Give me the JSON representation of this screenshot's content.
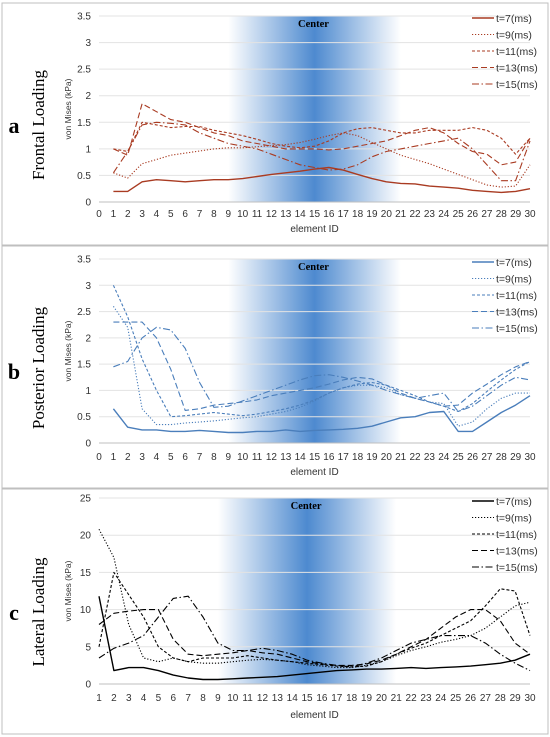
{
  "chart_data": [
    {
      "type": "line",
      "panel_letter": "a",
      "side_label": "Frontal Loading",
      "center_label": "Center",
      "xlabel": "element ID",
      "ylabel": "von Mises (kPa)",
      "x_ticks": [
        0,
        1,
        2,
        3,
        4,
        5,
        6,
        7,
        8,
        9,
        10,
        11,
        12,
        13,
        14,
        15,
        16,
        17,
        18,
        19,
        20,
        21,
        22,
        23,
        24,
        25,
        26,
        27,
        28,
        29,
        30
      ],
      "y_ticks": [
        0,
        0.5,
        1,
        1.5,
        2,
        2.5,
        3,
        3.5
      ],
      "ylim": [
        0,
        3.5
      ],
      "xlim": [
        0,
        30
      ],
      "highlight_range": [
        9,
        21
      ],
      "legend_position": "top-right",
      "color": "#a93b22",
      "series": [
        {
          "name": "t=7(ms)",
          "style": "solid",
          "x": [
            1,
            2,
            3,
            4,
            5,
            6,
            7,
            8,
            9,
            10,
            11,
            12,
            13,
            14,
            15,
            16,
            17,
            18,
            19,
            20,
            21,
            22,
            23,
            24,
            25,
            26,
            27,
            28,
            29,
            30
          ],
          "values": [
            0.2,
            0.2,
            0.38,
            0.42,
            0.4,
            0.38,
            0.4,
            0.42,
            0.42,
            0.44,
            0.48,
            0.52,
            0.55,
            0.58,
            0.62,
            0.65,
            0.6,
            0.52,
            0.44,
            0.38,
            0.35,
            0.34,
            0.3,
            0.28,
            0.26,
            0.22,
            0.2,
            0.18,
            0.2,
            0.25
          ]
        },
        {
          "name": "t=9(ms)",
          "style": "dotted",
          "x": [
            1,
            2,
            3,
            4,
            5,
            6,
            7,
            8,
            9,
            10,
            11,
            12,
            13,
            14,
            15,
            16,
            17,
            18,
            19,
            20,
            21,
            22,
            23,
            24,
            25,
            26,
            27,
            28,
            29,
            30
          ],
          "values": [
            0.55,
            0.45,
            0.72,
            0.8,
            0.88,
            0.92,
            0.96,
            1.0,
            1.02,
            1.02,
            1.04,
            1.06,
            1.08,
            1.12,
            1.18,
            1.25,
            1.3,
            1.25,
            1.12,
            1.0,
            0.88,
            0.8,
            0.72,
            0.62,
            0.52,
            0.42,
            0.32,
            0.28,
            0.3,
            0.7
          ]
        },
        {
          "name": "t=11(ms)",
          "style": "small-dash",
          "x": [
            1,
            2,
            3,
            4,
            5,
            6,
            7,
            8,
            9,
            10,
            11,
            12,
            13,
            14,
            15,
            16,
            17,
            18,
            19,
            20,
            21,
            22,
            23,
            24,
            25,
            26,
            27,
            28,
            29,
            30
          ],
          "values": [
            1.0,
            0.95,
            1.5,
            1.45,
            1.4,
            1.42,
            1.42,
            1.35,
            1.3,
            1.25,
            1.18,
            1.1,
            1.05,
            1.02,
            1.05,
            1.15,
            1.3,
            1.38,
            1.4,
            1.35,
            1.3,
            1.3,
            1.35,
            1.35,
            1.35,
            1.4,
            1.35,
            1.2,
            0.9,
            1.2
          ]
        },
        {
          "name": "t=13(ms)",
          "style": "dash",
          "x": [
            1,
            2,
            3,
            4,
            5,
            6,
            7,
            8,
            9,
            10,
            11,
            12,
            13,
            14,
            15,
            16,
            17,
            18,
            19,
            20,
            21,
            22,
            23,
            24,
            25,
            26,
            27,
            28,
            29,
            30
          ],
          "values": [
            1.0,
            0.88,
            1.85,
            1.7,
            1.55,
            1.5,
            1.4,
            1.3,
            1.25,
            1.15,
            1.1,
            1.05,
            1.0,
            1.0,
            1.0,
            0.98,
            1.0,
            1.05,
            1.1,
            1.15,
            1.25,
            1.35,
            1.4,
            1.3,
            1.1,
            0.95,
            0.9,
            0.7,
            0.75,
            1.2
          ]
        },
        {
          "name": "t=15(ms)",
          "style": "dash-dot",
          "x": [
            1,
            2,
            3,
            4,
            5,
            6,
            7,
            8,
            9,
            10,
            11,
            12,
            13,
            14,
            15,
            16,
            17,
            18,
            19,
            20,
            21,
            22,
            23,
            24,
            25,
            26,
            27,
            28,
            29,
            30
          ],
          "values": [
            0.55,
            0.95,
            1.45,
            1.5,
            1.48,
            1.45,
            1.3,
            1.2,
            1.1,
            1.05,
            1.0,
            0.9,
            0.8,
            0.7,
            0.65,
            0.6,
            0.62,
            0.7,
            0.85,
            0.95,
            1.0,
            1.05,
            1.1,
            1.15,
            1.2,
            1.0,
            0.7,
            0.4,
            0.4,
            1.15
          ]
        }
      ]
    },
    {
      "type": "line",
      "panel_letter": "b",
      "side_label": "Posterior Loading",
      "center_label": "Center",
      "xlabel": "element ID",
      "ylabel": "von Mises (kPa)",
      "x_ticks": [
        0,
        1,
        2,
        3,
        4,
        5,
        6,
        7,
        8,
        9,
        10,
        11,
        12,
        13,
        14,
        15,
        16,
        17,
        18,
        19,
        20,
        21,
        22,
        23,
        24,
        25,
        26,
        27,
        28,
        29,
        30
      ],
      "y_ticks": [
        0,
        0.5,
        1,
        1.5,
        2,
        2.5,
        3,
        3.5
      ],
      "ylim": [
        0,
        3.5
      ],
      "xlim": [
        0,
        30
      ],
      "highlight_range": [
        9,
        21
      ],
      "legend_position": "top-right",
      "color": "#4a7ebb",
      "series": [
        {
          "name": "t=7(ms)",
          "style": "solid",
          "x": [
            1,
            2,
            3,
            4,
            5,
            6,
            7,
            8,
            9,
            10,
            11,
            12,
            13,
            14,
            15,
            16,
            17,
            18,
            19,
            20,
            21,
            22,
            23,
            24,
            25,
            26,
            27,
            28,
            29,
            30
          ],
          "values": [
            0.65,
            0.3,
            0.25,
            0.25,
            0.22,
            0.22,
            0.24,
            0.22,
            0.2,
            0.2,
            0.22,
            0.22,
            0.25,
            0.22,
            0.24,
            0.25,
            0.26,
            0.28,
            0.32,
            0.4,
            0.48,
            0.5,
            0.58,
            0.6,
            0.22,
            0.22,
            0.4,
            0.58,
            0.72,
            0.9
          ]
        },
        {
          "name": "t=9(ms)",
          "style": "dotted",
          "x": [
            1,
            2,
            3,
            4,
            5,
            6,
            7,
            8,
            9,
            10,
            11,
            12,
            13,
            14,
            15,
            16,
            17,
            18,
            19,
            20,
            21,
            22,
            23,
            24,
            25,
            26,
            27,
            28,
            29,
            30
          ],
          "values": [
            2.6,
            2.2,
            0.65,
            0.35,
            0.35,
            0.38,
            0.4,
            0.42,
            0.45,
            0.48,
            0.5,
            0.55,
            0.6,
            0.68,
            0.8,
            0.95,
            1.05,
            1.1,
            1.1,
            1.05,
            0.92,
            0.85,
            0.78,
            0.75,
            0.32,
            0.4,
            0.65,
            0.85,
            0.95,
            0.95
          ]
        },
        {
          "name": "t=11(ms)",
          "style": "small-dash",
          "x": [
            1,
            2,
            3,
            4,
            5,
            6,
            7,
            8,
            9,
            10,
            11,
            12,
            13,
            14,
            15,
            16,
            17,
            18,
            19,
            20,
            21,
            22,
            23,
            24,
            25,
            26,
            27,
            28,
            29,
            30
          ],
          "values": [
            3.0,
            2.4,
            1.6,
            1.0,
            0.5,
            0.52,
            0.55,
            0.58,
            0.55,
            0.52,
            0.55,
            0.6,
            0.65,
            0.72,
            0.82,
            0.95,
            1.05,
            1.12,
            1.15,
            1.1,
            1.0,
            0.9,
            0.78,
            0.7,
            0.6,
            0.75,
            0.98,
            1.2,
            1.4,
            1.55
          ]
        },
        {
          "name": "t=13(ms)",
          "style": "dash",
          "x": [
            1,
            2,
            3,
            4,
            5,
            6,
            7,
            8,
            9,
            10,
            11,
            12,
            13,
            14,
            15,
            16,
            17,
            18,
            19,
            20,
            21,
            22,
            23,
            24,
            25,
            26,
            27,
            28,
            29,
            30
          ],
          "values": [
            2.3,
            2.3,
            2.3,
            2.0,
            1.4,
            0.62,
            0.65,
            0.72,
            0.75,
            0.78,
            0.82,
            0.9,
            0.95,
            1.0,
            1.05,
            1.12,
            1.2,
            1.25,
            1.22,
            1.1,
            0.95,
            0.85,
            0.78,
            0.7,
            0.72,
            0.95,
            1.12,
            1.3,
            1.45,
            1.55
          ]
        },
        {
          "name": "t=15(ms)",
          "style": "dash-dot",
          "x": [
            1,
            2,
            3,
            4,
            5,
            6,
            7,
            8,
            9,
            10,
            11,
            12,
            13,
            14,
            15,
            16,
            17,
            18,
            19,
            20,
            21,
            22,
            23,
            24,
            25,
            26,
            27,
            28,
            29,
            30
          ],
          "values": [
            1.45,
            1.55,
            2.0,
            2.2,
            2.15,
            1.8,
            1.15,
            0.68,
            0.7,
            0.8,
            0.9,
            1.0,
            1.1,
            1.2,
            1.28,
            1.3,
            1.25,
            1.18,
            1.1,
            1.0,
            0.92,
            0.85,
            0.9,
            0.95,
            0.6,
            0.7,
            0.9,
            1.1,
            1.25,
            1.2
          ]
        }
      ]
    },
    {
      "type": "line",
      "panel_letter": "c",
      "side_label": "Lateral Loading",
      "center_label": "Center",
      "xlabel": "element ID",
      "ylabel": "von Mises (kPa)",
      "x_ticks": [
        1,
        2,
        3,
        4,
        5,
        6,
        7,
        8,
        9,
        10,
        11,
        12,
        13,
        14,
        15,
        16,
        17,
        18,
        19,
        20,
        21,
        22,
        23,
        24,
        25,
        26,
        27,
        28,
        29,
        30
      ],
      "y_ticks": [
        0,
        5,
        10,
        15,
        20,
        25
      ],
      "ylim": [
        0,
        25
      ],
      "xlim": [
        1,
        30
      ],
      "highlight_range": [
        9,
        21
      ],
      "legend_position": "top-right",
      "color": "#000000",
      "series": [
        {
          "name": "t=7(ms)",
          "style": "solid",
          "x": [
            1,
            2,
            3,
            4,
            5,
            6,
            7,
            8,
            9,
            10,
            11,
            12,
            13,
            14,
            15,
            16,
            17,
            18,
            19,
            20,
            21,
            22,
            23,
            24,
            25,
            26,
            27,
            28,
            29,
            30
          ],
          "values": [
            11.8,
            1.8,
            2.2,
            2.2,
            1.8,
            1.2,
            0.8,
            0.6,
            0.6,
            0.7,
            0.8,
            0.9,
            1.0,
            1.2,
            1.4,
            1.6,
            1.8,
            1.9,
            2.0,
            2.0,
            2.1,
            2.2,
            2.1,
            2.2,
            2.3,
            2.4,
            2.6,
            2.8,
            3.2,
            4.0
          ]
        },
        {
          "name": "t=9(ms)",
          "style": "dotted",
          "x": [
            1,
            2,
            3,
            4,
            5,
            6,
            7,
            8,
            9,
            10,
            11,
            12,
            13,
            14,
            15,
            16,
            17,
            18,
            19,
            20,
            21,
            22,
            23,
            24,
            25,
            26,
            27,
            28,
            29,
            30
          ],
          "values": [
            20.8,
            17.0,
            8.0,
            3.5,
            3.0,
            3.5,
            3.0,
            2.8,
            2.8,
            3.0,
            3.2,
            3.3,
            3.2,
            3.0,
            2.6,
            2.4,
            2.2,
            2.2,
            2.5,
            3.0,
            3.8,
            4.5,
            5.0,
            5.6,
            6.0,
            6.5,
            7.5,
            9.0,
            10.5,
            11.0
          ]
        },
        {
          "name": "t=11(ms)",
          "style": "small-dash",
          "x": [
            1,
            2,
            3,
            4,
            5,
            6,
            7,
            8,
            9,
            10,
            11,
            12,
            13,
            14,
            15,
            16,
            17,
            18,
            19,
            20,
            21,
            22,
            23,
            24,
            25,
            26,
            27,
            28,
            29,
            30
          ],
          "values": [
            5.0,
            15.0,
            12.0,
            9.0,
            5.0,
            3.5,
            3.0,
            3.5,
            3.5,
            3.5,
            3.8,
            3.5,
            3.2,
            3.0,
            2.8,
            2.6,
            2.4,
            2.3,
            2.4,
            3.0,
            4.0,
            4.8,
            5.5,
            6.5,
            7.5,
            8.5,
            10.5,
            12.8,
            12.5,
            6.5
          ]
        },
        {
          "name": "t=13(ms)",
          "style": "dash",
          "x": [
            1,
            2,
            3,
            4,
            5,
            6,
            7,
            8,
            9,
            10,
            11,
            12,
            13,
            14,
            15,
            16,
            17,
            18,
            19,
            20,
            21,
            22,
            23,
            24,
            25,
            26,
            27,
            28,
            29,
            30
          ],
          "values": [
            8.0,
            9.5,
            9.8,
            10.0,
            10.0,
            6.0,
            4.0,
            3.8,
            4.0,
            4.2,
            4.5,
            4.2,
            4.0,
            3.5,
            3.0,
            2.7,
            2.5,
            2.5,
            2.7,
            3.2,
            4.0,
            5.0,
            6.0,
            7.5,
            9.0,
            10.0,
            10.0,
            8.5,
            5.5,
            4.0
          ]
        },
        {
          "name": "t=15(ms)",
          "style": "dash-dot",
          "x": [
            1,
            2,
            3,
            4,
            5,
            6,
            7,
            8,
            9,
            10,
            11,
            12,
            13,
            14,
            15,
            16,
            17,
            18,
            19,
            20,
            21,
            22,
            23,
            24,
            25,
            26,
            27,
            28,
            29,
            30
          ],
          "values": [
            3.5,
            4.8,
            5.5,
            6.5,
            9.0,
            11.5,
            11.8,
            9.0,
            5.5,
            4.5,
            4.5,
            4.8,
            4.5,
            4.0,
            3.2,
            2.8,
            2.5,
            2.3,
            2.8,
            3.5,
            4.5,
            5.5,
            6.0,
            6.5,
            6.5,
            6.5,
            5.5,
            4.0,
            2.8,
            1.8
          ]
        }
      ]
    }
  ]
}
